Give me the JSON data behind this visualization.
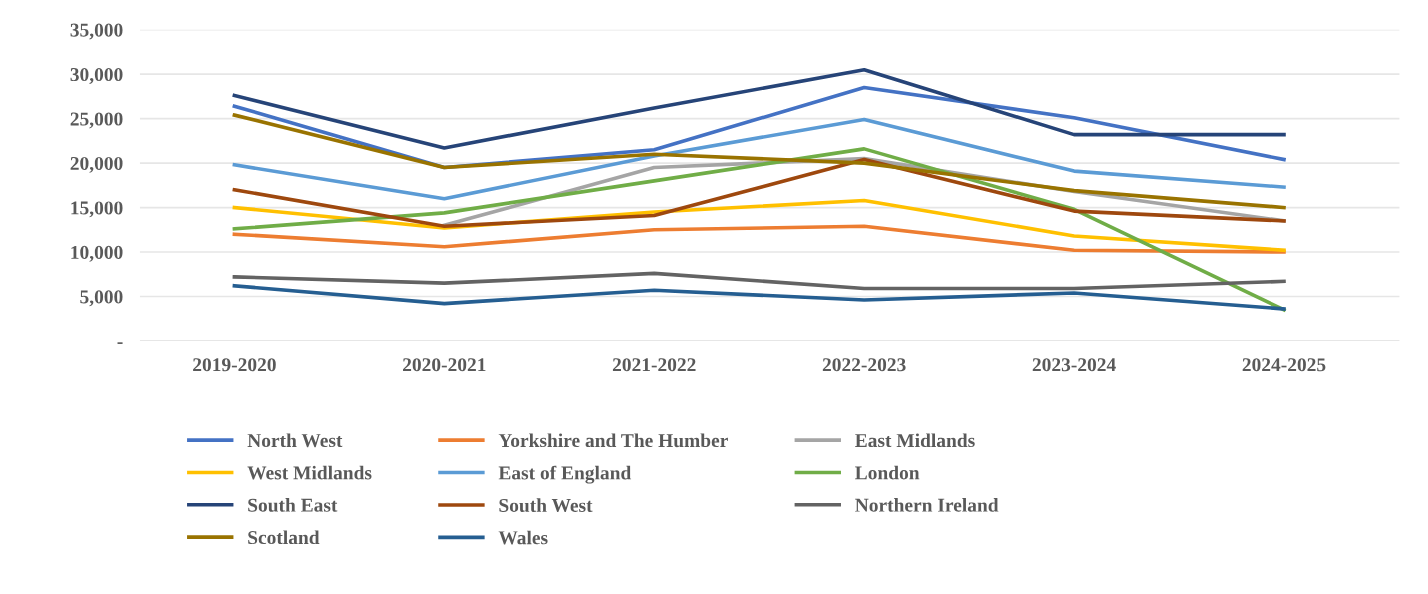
{
  "chart_data": {
    "type": "line",
    "categories": [
      "2019-2020",
      "2020-2021",
      "2021-2022",
      "2022-2023",
      "2023-2024",
      "2024-2025"
    ],
    "ylim": [
      0,
      35000
    ],
    "yticks": [
      {
        "value": 0,
        "label": "-"
      },
      {
        "value": 5000,
        "label": "5,000"
      },
      {
        "value": 10000,
        "label": "10,000"
      },
      {
        "value": 15000,
        "label": "15,000"
      },
      {
        "value": 20000,
        "label": "20,000"
      },
      {
        "value": 25000,
        "label": "25,000"
      },
      {
        "value": 30000,
        "label": "30,000"
      },
      {
        "value": 35000,
        "label": "35,000"
      }
    ],
    "grid": "y",
    "legend": "bottom",
    "marker": "none",
    "line_style": "solid",
    "series": [
      {
        "name": "North West",
        "color": "#4472c4",
        "values": [
          26400,
          19500,
          21500,
          28500,
          25100,
          20400
        ]
      },
      {
        "name": "Yorkshire and The Humber",
        "color": "#ed7d31",
        "values": [
          12000,
          10600,
          12500,
          12900,
          10200,
          10000
        ]
      },
      {
        "name": "East Midlands",
        "color": "#a5a5a5",
        "values": [
          null,
          13000,
          19500,
          20500,
          16800,
          13500
        ]
      },
      {
        "name": "West Midlands",
        "color": "#ffc000",
        "values": [
          15000,
          12700,
          14500,
          15800,
          11800,
          10200
        ]
      },
      {
        "name": "East of England",
        "color": "#5b9bd5",
        "values": [
          19800,
          16000,
          20800,
          24900,
          19100,
          17300
        ]
      },
      {
        "name": "London",
        "color": "#70ad47",
        "values": [
          12600,
          14400,
          18000,
          21600,
          14800,
          3500
        ]
      },
      {
        "name": "South East",
        "color": "#264478",
        "values": [
          27600,
          21700,
          26200,
          30500,
          23200,
          23200
        ]
      },
      {
        "name": "South West",
        "color": "#9e480e",
        "values": [
          17000,
          12900,
          14100,
          20400,
          14600,
          13500
        ]
      },
      {
        "name": "Northern Ireland",
        "color": "#636363",
        "values": [
          7200,
          6500,
          7600,
          5900,
          5900,
          6700
        ]
      },
      {
        "name": "Scotland",
        "color": "#997300",
        "values": [
          25400,
          19500,
          21000,
          20000,
          16900,
          15000
        ]
      },
      {
        "name": "Wales",
        "color": "#255e91",
        "values": [
          6200,
          4200,
          5700,
          4600,
          5400,
          3600
        ]
      }
    ]
  }
}
